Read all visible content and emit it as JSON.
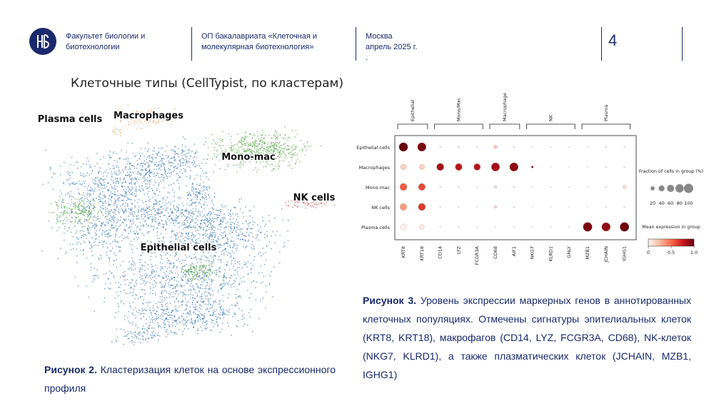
{
  "header": {
    "faculty": "Факультет биологии и биотехнологии",
    "program": "ОП бакалавриата «Клеточная и молекулярная биотехнология»",
    "city": "Москва",
    "date": "апрель 2025 г.",
    "dot": ".",
    "page_number": "4"
  },
  "umap": {
    "title": "Клеточные типы (CellTypist, по кластерам)",
    "labels": [
      "Plasma cells",
      "Macrophages",
      "Mono-mac",
      "NK cells",
      "Epithelial cells"
    ]
  },
  "dotplot": {
    "type": "dotplot",
    "rows": [
      "Epithelial cells",
      "Macrophages",
      "Mono-mac",
      "NK cells",
      "Plasma cells"
    ],
    "groups": [
      {
        "label": "Epithelial",
        "genes": [
          "KRT8",
          "KRT18"
        ]
      },
      {
        "label": "Mono/Mac",
        "genes": [
          "CD14",
          "LYZ",
          "FCGR3A"
        ]
      },
      {
        "label": "Macrophage",
        "genes": [
          "CD68",
          "AIF1"
        ]
      },
      {
        "label": "NK",
        "genes": [
          "NKG7",
          "KLRD1",
          "GNLY"
        ]
      },
      {
        "label": "Plasma",
        "genes": [
          "MZB1",
          "JCHAIN",
          "IGHG1"
        ]
      }
    ],
    "fraction": [
      [
        90,
        85,
        2,
        3,
        2,
        15,
        3,
        1,
        1,
        1,
        1,
        2,
        2
      ],
      [
        40,
        35,
        60,
        55,
        50,
        80,
        85,
        5,
        1,
        1,
        1,
        2,
        2
      ],
      [
        60,
        55,
        2,
        3,
        1,
        10,
        3,
        1,
        1,
        1,
        1,
        2,
        15
      ],
      [
        55,
        60,
        2,
        2,
        1,
        8,
        2,
        1,
        1,
        1,
        1,
        2,
        2
      ],
      [
        40,
        30,
        1,
        3,
        1,
        1,
        1,
        1,
        1,
        1,
        95,
        85,
        95
      ]
    ],
    "expression": [
      [
        1.0,
        0.95,
        0.05,
        0.05,
        0.02,
        0.2,
        0.03,
        0,
        0,
        0,
        0,
        0.02,
        0.02
      ],
      [
        0.15,
        0.15,
        0.85,
        0.8,
        0.8,
        0.85,
        0.9,
        0.9,
        0,
        0,
        0,
        0.02,
        0.02
      ],
      [
        0.55,
        0.6,
        0.05,
        0.05,
        0,
        0.1,
        0.05,
        0,
        0,
        0,
        0,
        0.02,
        0.1
      ],
      [
        0.35,
        0.65,
        0.05,
        0.05,
        0,
        0.15,
        0.03,
        0,
        0,
        0,
        0,
        0.02,
        0.02
      ],
      [
        0.02,
        0.05,
        0,
        0.05,
        0,
        0,
        0,
        0,
        0,
        0,
        0.95,
        0.9,
        0.98
      ]
    ],
    "colors": [
      "#fff5f0",
      "#fcbba1",
      "#fb6a4a",
      "#cb181d",
      "#67000d"
    ],
    "size_legend": {
      "title": "Fraction of cells in group (%)",
      "ticks": [
        20,
        40,
        60,
        80,
        100
      ]
    },
    "color_legend": {
      "title": "Mean expression in group",
      "ticks": [
        0,
        0.5,
        {
          "value": 1,
          "label": "1.0"
        }
      ]
    }
  },
  "captions": {
    "fig2": {
      "label": "Рисунок 2.",
      "text": "Кластеризация клеток на основе экспрессионного профиля"
    },
    "fig3": {
      "label": "Рисунок 3.",
      "text": "Уровень экспрессии маркерных генов в аннотированных клеточных популяциях. Отмечены сигнатуры эпителиальных клеток (KRT8, KRT18), макрофагов (CD14, LYZ, FCGR3A, CD68), NK-клеток (NKG7, KLRD1), а также плазматических клеток (JCHAIN, MZB1, IGHG1)"
    }
  }
}
